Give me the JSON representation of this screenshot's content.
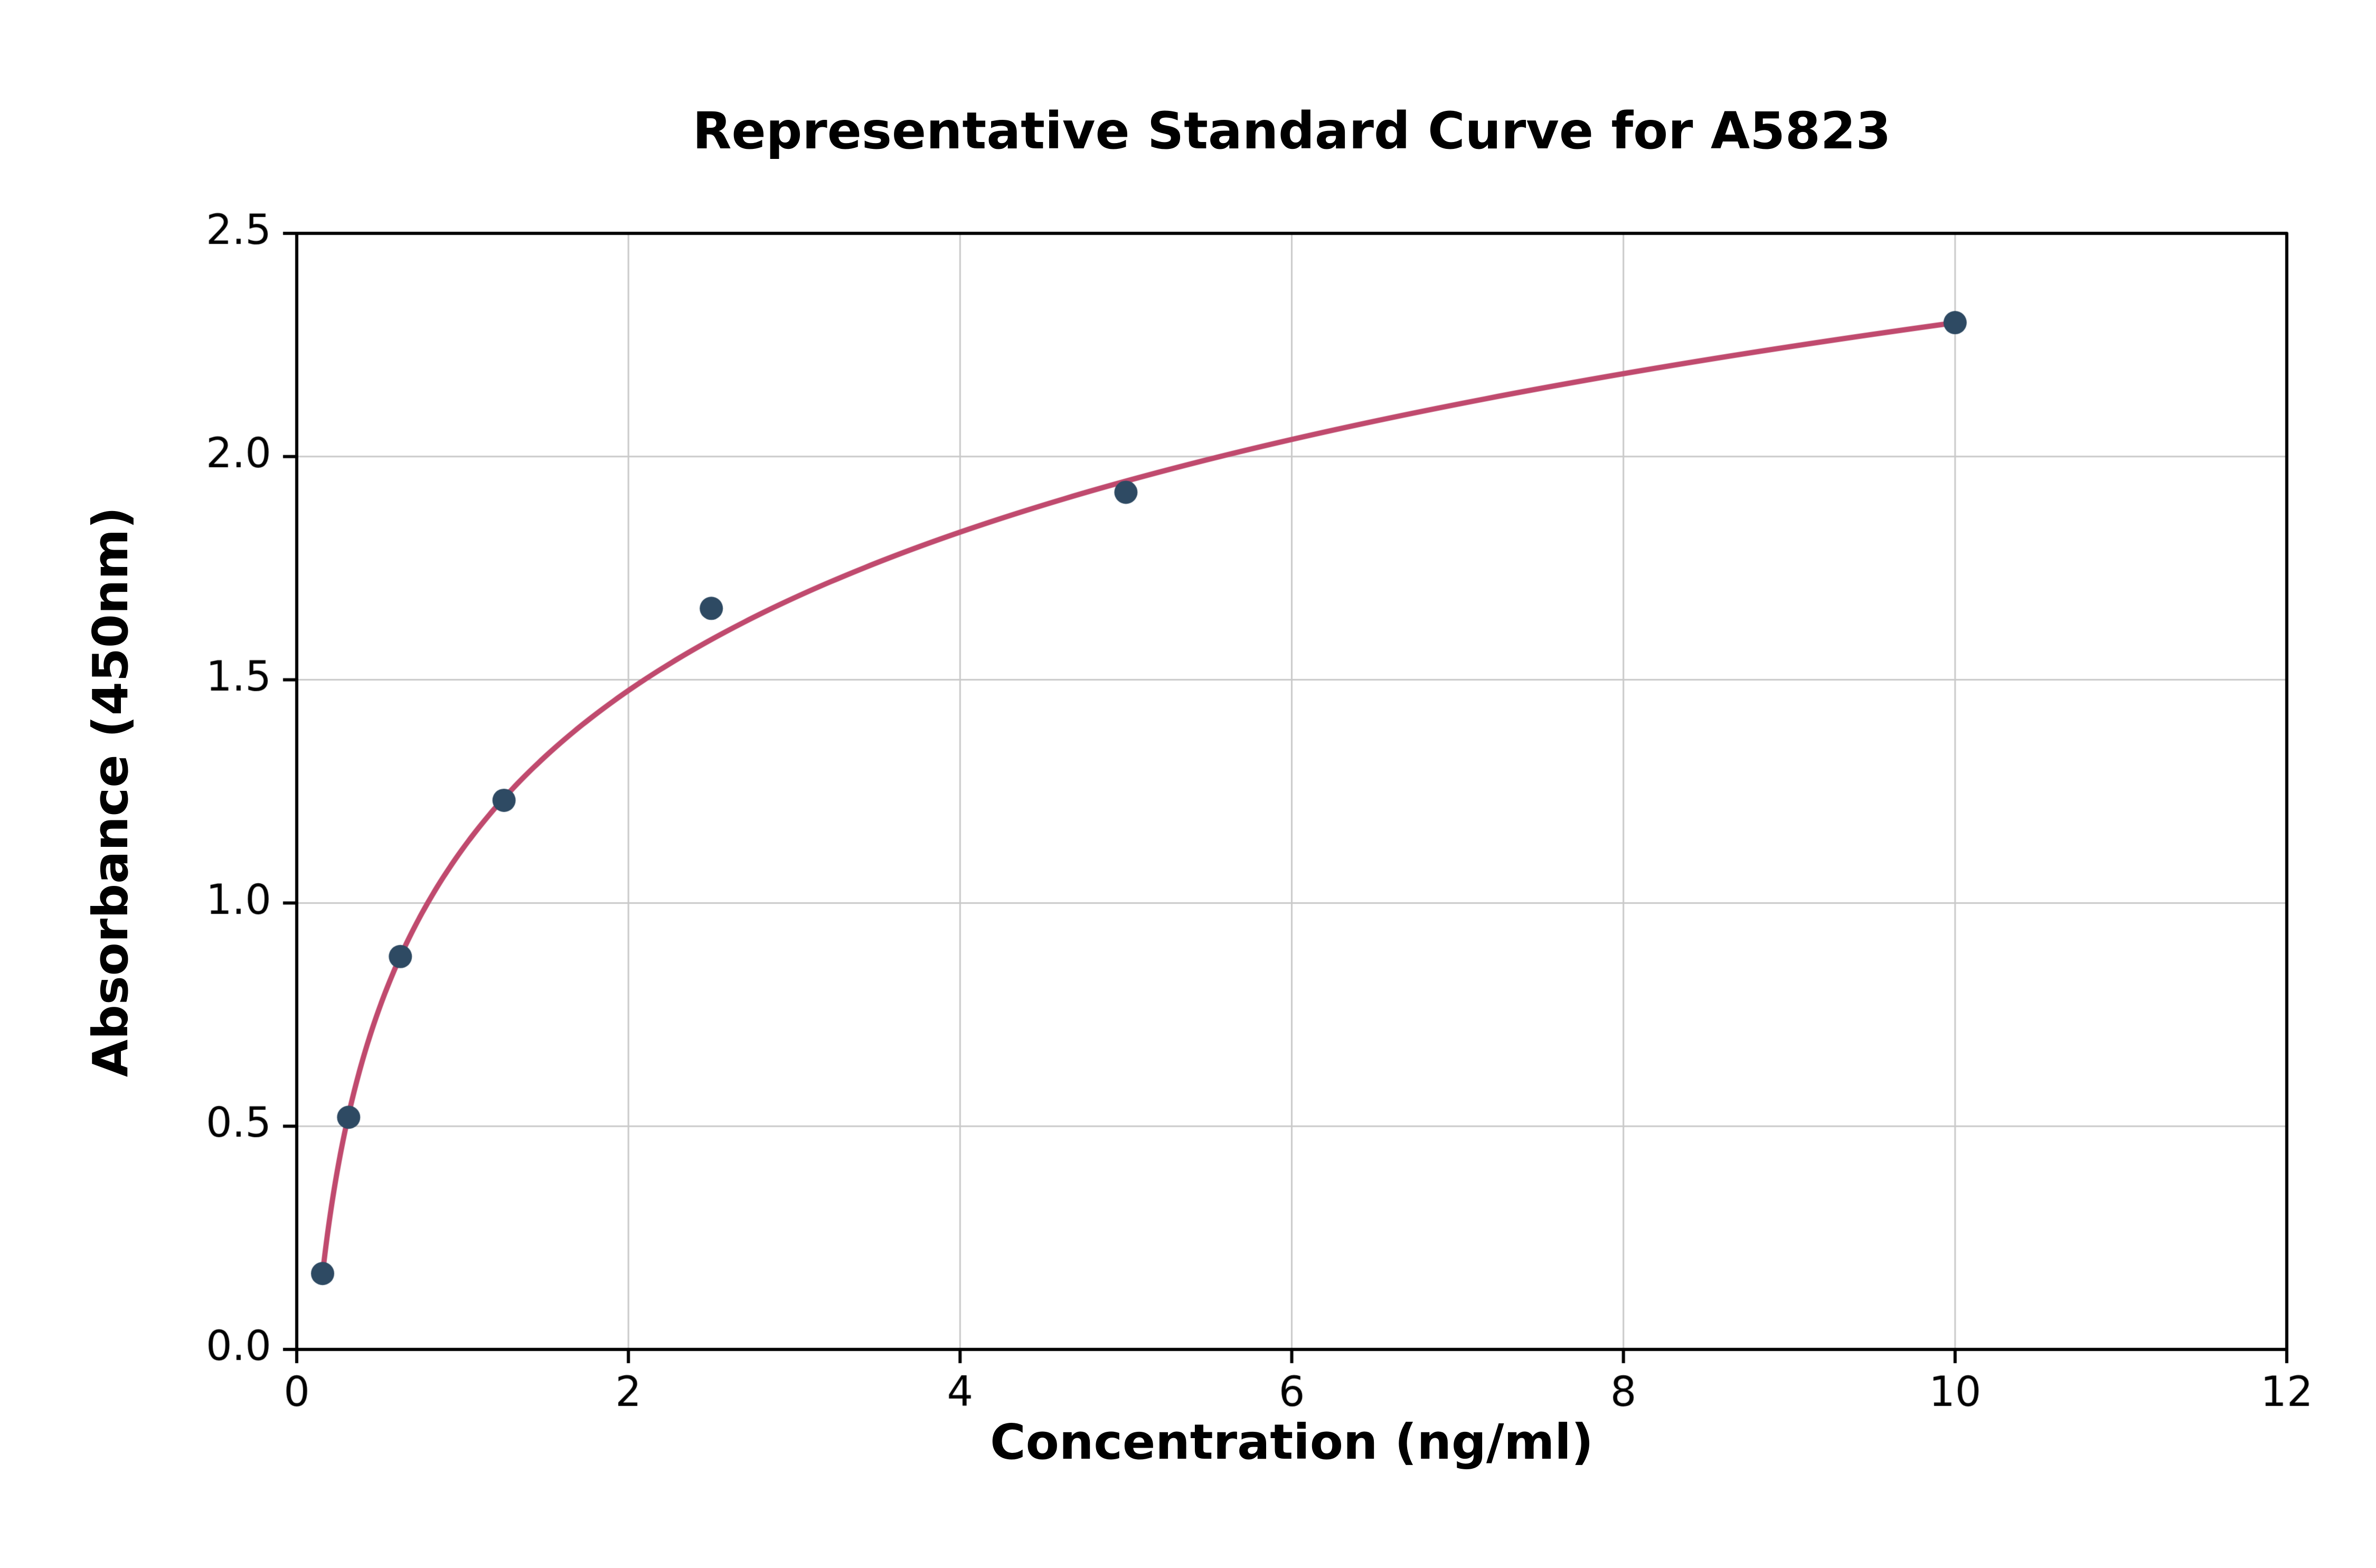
{
  "chart_data": {
    "type": "scatter",
    "title": "Representative Standard Curve for A5823",
    "xlabel": "Concentration (ng/ml)",
    "ylabel": "Absorbance (450nm)",
    "xlim": [
      0,
      12
    ],
    "ylim": [
      0,
      2.5
    ],
    "grid": true,
    "legend": "none",
    "xticks": [
      0,
      2,
      4,
      6,
      8,
      10,
      12
    ],
    "xtick_labels": [
      "0",
      "2",
      "4",
      "6",
      "8",
      "10",
      "12"
    ],
    "yticks": [
      0,
      0.5,
      1.0,
      1.5,
      2.0,
      2.5
    ],
    "ytick_labels": [
      "0.0",
      "0.5",
      "1.0",
      "1.5",
      "2.0",
      "2.5"
    ],
    "points": {
      "x": [
        0.156,
        0.313,
        0.625,
        1.25,
        2.5,
        5,
        10
      ],
      "y": [
        0.17,
        0.52,
        0.88,
        1.23,
        1.66,
        1.92,
        2.3
      ]
    },
    "fit_curve": {
      "model": "y = a + b*ln(x)",
      "a": 1.121,
      "b": 0.512,
      "x_range": [
        0.156,
        10
      ]
    },
    "colors": {
      "points": "#2e4a63",
      "curve": "#c04a6e",
      "grid": "#c9c9c9",
      "axis": "#000000",
      "background": "#ffffff"
    }
  }
}
